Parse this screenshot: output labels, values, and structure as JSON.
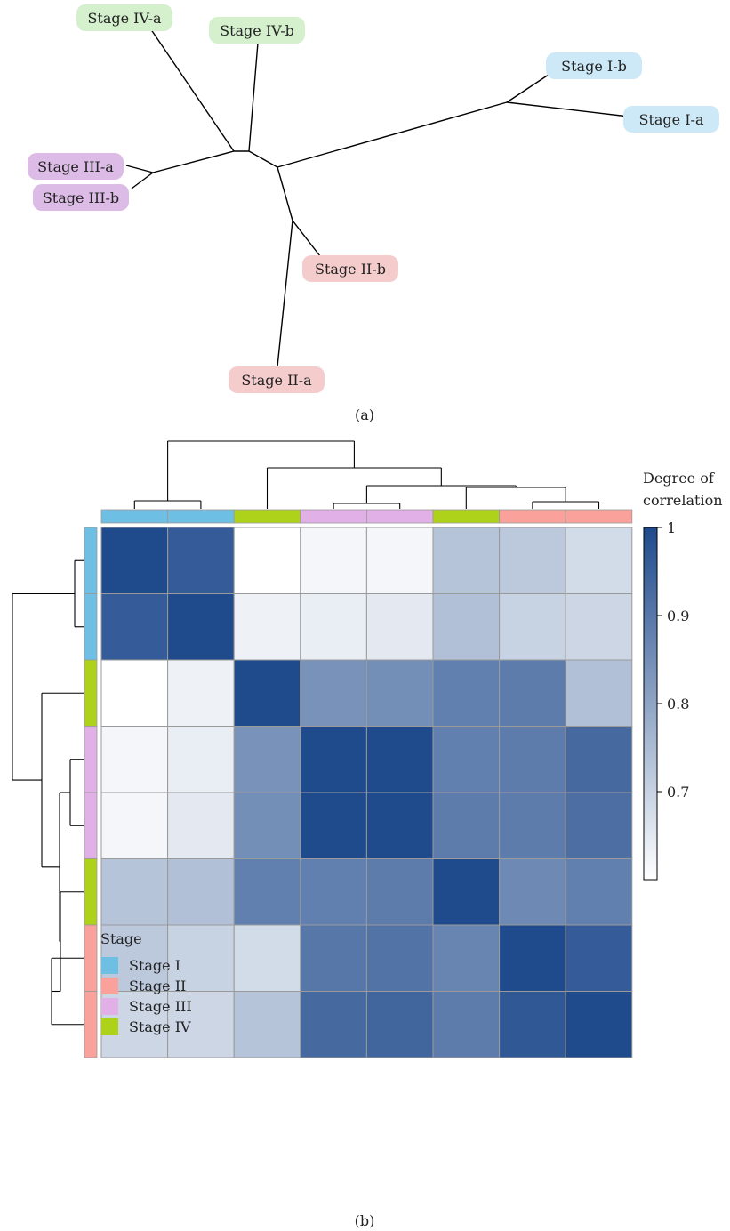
{
  "chart_data": [
    {
      "type": "tree",
      "caption": "(a)",
      "leaves": [
        {
          "name": "Stage IV-a",
          "stage": "Stage IV"
        },
        {
          "name": "Stage IV-b",
          "stage": "Stage IV"
        },
        {
          "name": "Stage I-b",
          "stage": "Stage I"
        },
        {
          "name": "Stage I-a",
          "stage": "Stage I"
        },
        {
          "name": "Stage III-a",
          "stage": "Stage III"
        },
        {
          "name": "Stage III-b",
          "stage": "Stage III"
        },
        {
          "name": "Stage II-b",
          "stage": "Stage II"
        },
        {
          "name": "Stage II-a",
          "stage": "Stage II"
        }
      ]
    },
    {
      "type": "heatmap",
      "caption": "(b)",
      "samples": [
        "Stage I",
        "Stage I",
        "Stage IV",
        "Stage III",
        "Stage III",
        "Stage IV",
        "Stage II",
        "Stage II"
      ],
      "matrix": [
        [
          1.0,
          0.96,
          0.6,
          0.62,
          0.62,
          0.73,
          0.72,
          0.68
        ],
        [
          0.96,
          1.0,
          0.63,
          0.64,
          0.65,
          0.74,
          0.7,
          0.69
        ],
        [
          0.6,
          0.63,
          1.0,
          0.84,
          0.85,
          0.88,
          0.89,
          0.74
        ],
        [
          0.62,
          0.64,
          0.84,
          1.0,
          1.0,
          0.88,
          0.89,
          0.93
        ],
        [
          0.62,
          0.65,
          0.85,
          1.0,
          1.0,
          0.89,
          0.89,
          0.92
        ],
        [
          0.73,
          0.74,
          0.88,
          0.88,
          0.89,
          1.0,
          0.86,
          0.88
        ],
        [
          0.72,
          0.7,
          0.68,
          0.9,
          0.91,
          0.87,
          1.0,
          0.96
        ],
        [
          0.69,
          0.69,
          0.73,
          0.93,
          0.94,
          0.89,
          0.97,
          1.0
        ]
      ],
      "colorbar": {
        "title_line1": "Degree of",
        "title_line2": "correlation",
        "ticks": [
          {
            "value": 1,
            "label": "1"
          },
          {
            "value": 0.9,
            "label": "0.9"
          },
          {
            "value": 0.8,
            "label": "0.8"
          },
          {
            "value": 0.7,
            "label": "0.7"
          }
        ],
        "min": 0.6,
        "max": 1.0,
        "color_low": "#ffffff",
        "color_high": "#1f4a8c"
      },
      "legend": {
        "title": "Stage",
        "items": [
          {
            "label": "Stage I",
            "color": "#6dbfe4"
          },
          {
            "label": "Stage II",
            "color": "#f9a19a"
          },
          {
            "label": "Stage III",
            "color": "#e0b0e6"
          },
          {
            "label": "Stage IV",
            "color": "#aed21a"
          }
        ]
      }
    }
  ],
  "stage_colors": {
    "Stage I": {
      "label_bg": "#cde9f7",
      "bar": "#6dbfe4"
    },
    "Stage II": {
      "label_bg": "#f4cccc",
      "bar": "#f9a19a"
    },
    "Stage III": {
      "label_bg": "#dcbce6",
      "bar": "#e0b0e6"
    },
    "Stage IV": {
      "label_bg": "#d4f0cc",
      "bar": "#aed21a"
    }
  }
}
